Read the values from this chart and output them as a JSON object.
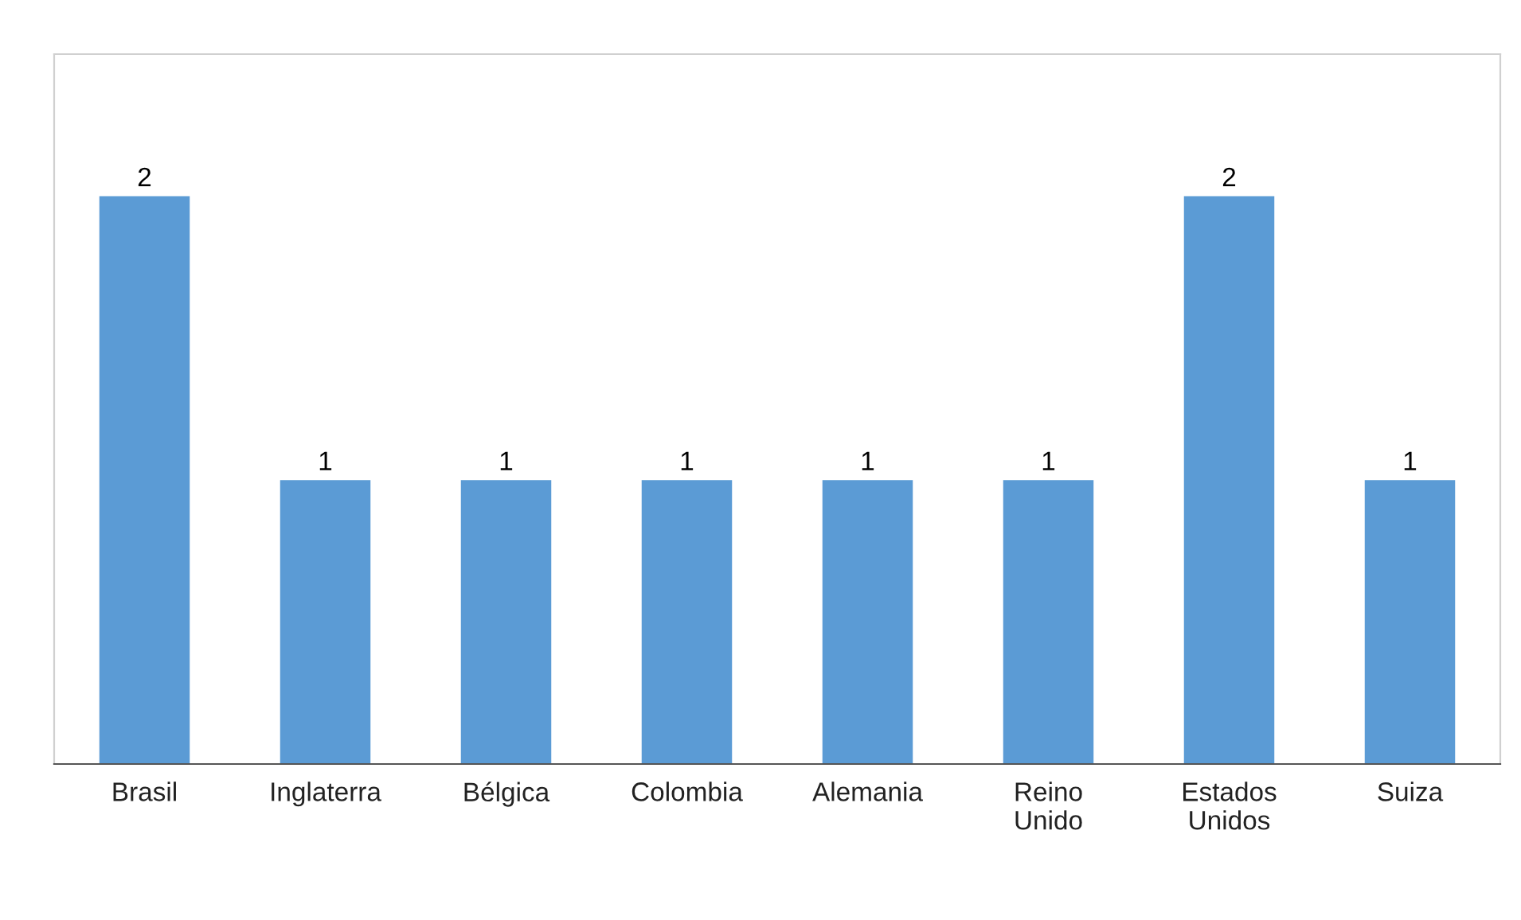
{
  "chart_data": {
    "type": "bar",
    "categories": [
      "Brasil",
      "Inglaterra",
      "Bélgica",
      "Colombia",
      "Alemania",
      "Reino Unido",
      "Estados Unidos",
      "Suiza"
    ],
    "values": [
      2,
      1,
      1,
      1,
      1,
      1,
      2,
      1
    ],
    "color": "#5b9bd5",
    "ylim": [
      0,
      2.5
    ],
    "data_labels": true,
    "tick_labels": "x",
    "grid": false
  }
}
